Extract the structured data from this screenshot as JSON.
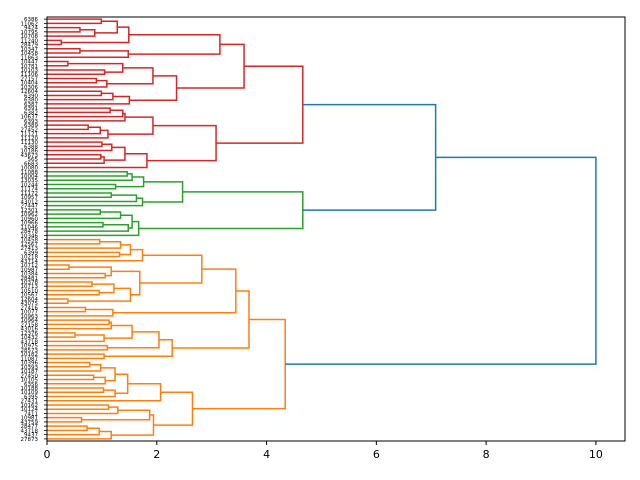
{
  "chart_data": {
    "type": "dendrogram",
    "orientation": "right",
    "title": "",
    "xlabel": "",
    "ylabel": "",
    "xlim": [
      0,
      10.53
    ],
    "x_ticks": [
      "0",
      "2",
      "4",
      "6",
      "8",
      "10"
    ],
    "x_tick_values": [
      0,
      2,
      4,
      6,
      8,
      10
    ],
    "color_threshold": 7.0,
    "above_threshold_color": "#1f77b4",
    "cluster_colors": [
      "#d62728",
      "#2ca02c",
      "#ff7f0e"
    ],
    "leaf_labels": [
      "6386",
      "11062",
      "9424",
      "10795",
      "10708",
      "11240",
      "28479",
      "10347",
      "10458",
      "11863",
      "10447",
      "10781",
      "10103",
      "11106",
      "27157",
      "10404",
      "10306",
      "12604",
      "6390",
      "6380",
      "6387",
      "6391",
      "6382",
      "10637",
      "6393",
      "6389",
      "27452",
      "11121",
      "11120",
      "11130",
      "6388",
      "10186",
      "43673",
      "565",
      "6683",
      "10080",
      "11088",
      "10004",
      "13035",
      "10244",
      "11174",
      "11172",
      "10957",
      "43012",
      "27447",
      "12301",
      "10962",
      "10960",
      "10966",
      "11046",
      "28478",
      "10346",
      "10458",
      "12567",
      "27413",
      "6399",
      "10218",
      "43714",
      "10712",
      "10987",
      "10384",
      "28481",
      "10378",
      "10713",
      "10510",
      "10567",
      "12604",
      "43075",
      "27416",
      "10077",
      "10963",
      "10964",
      "27158",
      "43016",
      "12376",
      "10432",
      "43718",
      "10975",
      "28573",
      "10182",
      "11087",
      "10396",
      "10393",
      "10187",
      "27450",
      "10105",
      "6356",
      "10188",
      "10109",
      "6395",
      "27431",
      "10162",
      "10124",
      "7411",
      "10981",
      "43759",
      "28477",
      "43718",
      "9437",
      "27873"
    ],
    "tree": [
      10.0,
      [
        7.08,
        [
          4.66,
          [
            3.59,
            [
              3.15,
              [
                1.49,
                [
                  1.28,
                  [
                    0.99,
                    0,
                    1
                  ],
                  [
                    0.87,
                    [
                      0.6,
                      2,
                      3
                    ],
                    4
                  ]
                ],
                [
                  0.26,
                  5,
                  6
                ]
              ],
              [
                1.48,
                [
                  0.6,
                  7,
                  8
                ],
                9
              ]
            ],
            [
              2.36,
              [
                1.93,
                [
                  1.38,
                  [
                    0.38,
                    10,
                    11
                  ],
                  [
                    1.05,
                    12,
                    13
                  ]
                ],
                [
                  1.09,
                  [
                    0.9,
                    14,
                    15
                  ],
                  16
                ]
              ],
              [
                1.5,
                [
                  1.2,
                  [
                    0.99,
                    17,
                    18
                  ],
                  19
                ],
                20
              ]
            ]
          ],
          [
            3.08,
            [
              1.93,
              [
                1.42,
                [
                  1.38,
                  [
                    1.15,
                    21,
                    22
                  ],
                  23
                ],
                24
              ],
              [
                1.11,
                [
                  0.97,
                  [
                    0.75,
                    25,
                    26
                  ],
                  27
                ],
                28
              ]
            ],
            [
              1.82,
              [
                1.42,
                [
                  1.18,
                  [
                    1.0,
                    29,
                    30
                  ],
                  31
                ],
                [
                  1.04,
                  [
                    0.98,
                    32,
                    33
                  ],
                  34
                ]
              ],
              35
            ]
          ]
        ],
        [
          4.66,
          [
            2.47,
            [
              1.76,
              [
                1.55,
                [
                  1.46,
                  36,
                  37
                ],
                38
              ],
              [
                1.25,
                39,
                40
              ]
            ],
            [
              1.74,
              [
                1.63,
                [
                  1.17,
                  41,
                  42
                ],
                43
              ],
              44
            ]
          ],
          [
            1.67,
            [
              1.55,
              [
                1.34,
                [
                  0.97,
                  45,
                  46
                ],
                47
              ],
              [
                1.48,
                [
                  1.02,
                  48,
                  49
                ],
                50
              ]
            ],
            51
          ]
        ]
      ],
      [
        4.34,
        [
          3.68,
          [
            3.44,
            [
              2.82,
              [
                1.74,
                [
                  1.52,
                  [
                    1.34,
                    [
                      0.96,
                      52,
                      53
                    ],
                    54
                  ],
                  [
                    1.32,
                    55,
                    56
                  ]
                ],
                57
              ],
              [
                1.69,
                [
                  1.17,
                  [
                    0.4,
                    58,
                    59
                  ],
                  [
                    1.06,
                    60,
                    61
                  ]
                ],
                [
                  1.52,
                  [
                    1.22,
                    [
                      0.82,
                      62,
                      63
                    ],
                    [
                      0.95,
                      64,
                      65
                    ]
                  ],
                  [
                    0.38,
                    66,
                    67
                  ]
                ]
              ]
            ],
            [
              1.2,
              [
                0.7,
                68,
                69
              ],
              70
            ]
          ],
          [
            2.28,
            [
              2.04,
              [
                1.55,
                [
                  1.17,
                  [
                    1.13,
                    71,
                    72
                  ],
                  73
                ],
                [
                  1.04,
                  [
                    0.51,
                    74,
                    75
                  ],
                  76
                ]
              ],
              [
                1.1,
                77,
                78
              ]
            ],
            [
              1.04,
              79,
              80
            ]
          ]
        ],
        [
          2.65,
          [
            2.07,
            [
              1.47,
              [
                1.24,
                [
                  0.98,
                  [
                    0.78,
                    81,
                    82
                  ],
                  83
                ],
                [
                  1.06,
                  [
                    0.85,
                    84,
                    85
                  ],
                  86
                ]
              ],
              [
                1.24,
                [
                  1.03,
                  87,
                  88
                ],
                89
              ]
            ],
            90
          ],
          [
            1.94,
            [
              1.87,
              [
                1.29,
                [
                  1.12,
                  91,
                  92
                ],
                93
              ],
              [
                0.63,
                94,
                95
              ]
            ],
            [
              1.17,
              [
                0.95,
                [
                  0.73,
                  96,
                  97
                ],
                98
              ],
              99
            ]
          ]
        ]
      ]
    ]
  }
}
